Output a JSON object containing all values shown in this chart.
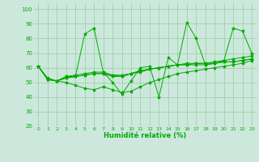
{
  "xlabel": "Humidité relative (%)",
  "background_color": "#cce8dd",
  "grid_color": "#99cc99",
  "line_color": "#00aa00",
  "marker_color": "#00aa00",
  "xlim": [
    -0.5,
    23.5
  ],
  "ylim": [
    20,
    104
  ],
  "yticks": [
    20,
    30,
    40,
    50,
    60,
    70,
    80,
    90,
    100
  ],
  "xticks": [
    0,
    1,
    2,
    3,
    4,
    5,
    6,
    7,
    8,
    9,
    10,
    11,
    12,
    13,
    14,
    15,
    16,
    17,
    18,
    19,
    20,
    21,
    22,
    23
  ],
  "xtick_labels": [
    "0",
    "1",
    "2",
    "3",
    "4",
    "5",
    "6",
    "7",
    "8",
    "9",
    "10",
    "11",
    "12",
    "13",
    "14",
    "15",
    "16",
    "17",
    "18",
    "19",
    "20",
    "21",
    "22",
    "23"
  ],
  "series": [
    [
      61,
      52,
      51,
      54,
      54,
      83,
      87,
      57,
      50,
      42,
      51,
      60,
      61,
      40,
      67,
      62,
      91,
      80,
      62,
      63,
      65,
      87,
      85,
      70
    ],
    [
      61,
      52,
      51,
      54,
      55,
      56,
      57,
      57,
      55,
      55,
      56,
      58,
      59,
      60,
      61,
      62,
      63,
      63,
      63,
      64,
      65,
      66,
      67,
      68
    ],
    [
      61,
      52,
      51,
      53,
      54,
      55,
      56,
      56,
      55,
      54,
      56,
      57,
      59,
      60,
      61,
      62,
      62,
      62,
      62,
      63,
      64,
      64,
      65,
      66
    ],
    [
      61,
      52,
      51,
      53,
      54,
      55,
      56,
      56,
      54,
      54,
      56,
      58,
      59,
      60,
      61,
      62,
      62,
      63,
      63,
      63,
      64,
      64,
      65,
      66
    ],
    [
      61,
      53,
      51,
      50,
      48,
      46,
      45,
      47,
      45,
      43,
      44,
      47,
      50,
      52,
      54,
      56,
      57,
      58,
      59,
      60,
      61,
      62,
      63,
      65
    ]
  ]
}
